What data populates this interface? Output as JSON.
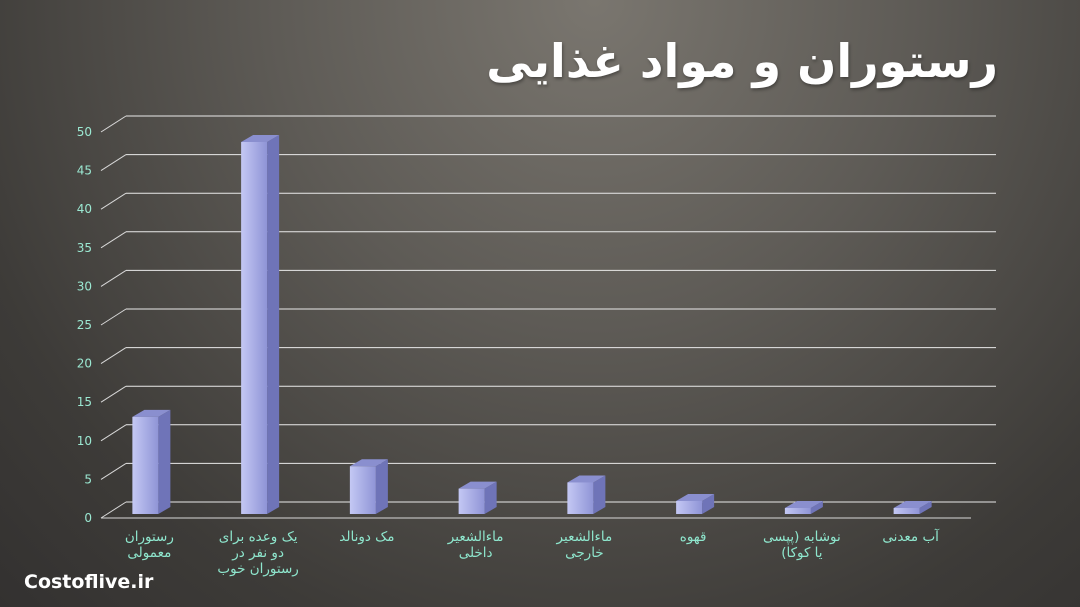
{
  "chart_data": {
    "type": "bar",
    "title": "رستوران و مواد غذایی",
    "categories": [
      "رستوران\nمعمولی",
      "یک وعده برای\nدو نفر در\nرستوران خوب",
      "مک دونالد",
      "ماءالشعیر\nداخلی",
      "ماءالشعیر\nخارجی",
      "قهوه",
      "نوشابه (پپسی\nیا کوکا)",
      "آب معدنی"
    ],
    "values": [
      14.4,
      50,
      8,
      5.1,
      5.9,
      3.5,
      1.9,
      1.8
    ],
    "ylim": [
      0,
      50
    ],
    "yticks": [
      "0",
      "5",
      "10",
      "15",
      "20",
      "25",
      "30",
      "35",
      "40",
      "45",
      "50"
    ],
    "grid": true,
    "bar_color": "#a9aee8"
  },
  "watermark": "Costoflive.ir"
}
